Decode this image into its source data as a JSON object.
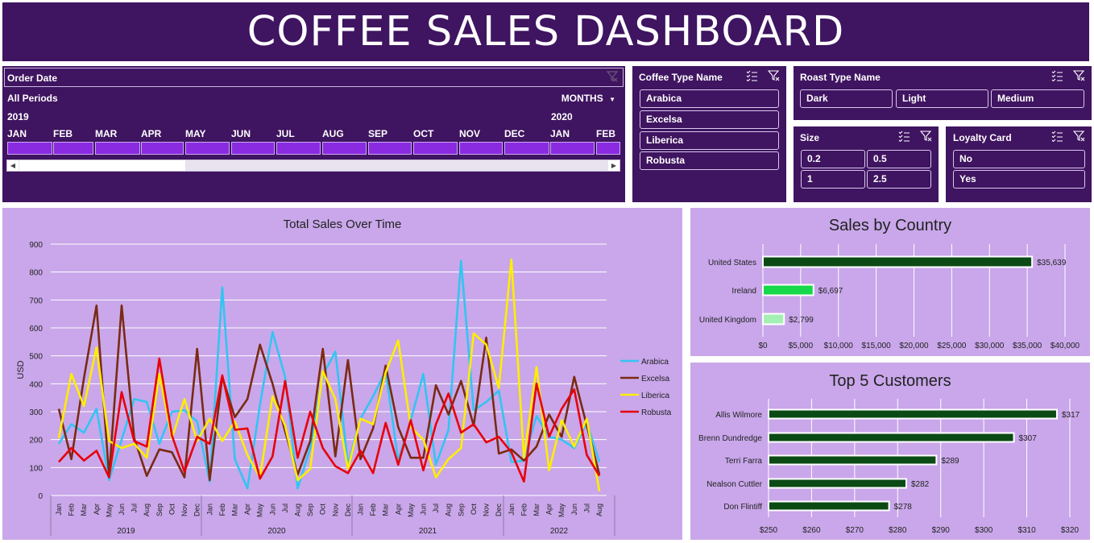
{
  "title": "COFFEE SALES DASHBOARD",
  "timeline": {
    "header": "Order Date",
    "periods": "All Periods",
    "level": "MONTHS",
    "year_start": "2019",
    "year_next": "2020",
    "months": [
      "JAN",
      "FEB",
      "MAR",
      "APR",
      "MAY",
      "JUN",
      "JUL",
      "AUG",
      "SEP",
      "OCT",
      "NOV",
      "DEC",
      "JAN",
      "FEB"
    ]
  },
  "coffee_type": {
    "title": "Coffee Type Name",
    "items": [
      "Arabica",
      "Excelsa",
      "Liberica",
      "Robusta"
    ]
  },
  "roast_type": {
    "title": "Roast Type Name",
    "items": [
      "Dark",
      "Light",
      "Medium"
    ]
  },
  "size": {
    "title": "Size",
    "items": [
      "0.2",
      "0.5",
      "1",
      "2.5"
    ]
  },
  "loyalty": {
    "title": "Loyalty Card",
    "items": [
      "No",
      "Yes"
    ]
  },
  "colors": {
    "arabica": "#33c4f2",
    "excelsa": "#7b2a12",
    "liberica": "#ffee00",
    "robusta": "#e8000a",
    "dark_bar": "#0b4a14"
  },
  "chart_data": [
    {
      "type": "line",
      "title": "Total Sales Over Time",
      "ylabel": "USD",
      "ylim": [
        0,
        900
      ],
      "yticks": [
        0,
        100,
        200,
        300,
        400,
        500,
        600,
        700,
        800,
        900
      ],
      "month_labels": [
        "Jan",
        "Feb",
        "Mar",
        "Apr",
        "May",
        "Jun",
        "Jul",
        "Aug",
        "Sep",
        "Oct",
        "Nov",
        "Dec"
      ],
      "years": [
        "2019",
        "2020",
        "2021",
        "2022"
      ],
      "legend_position": "right",
      "series": [
        {
          "name": "Arabica",
          "color": "#33c4f2",
          "values": [
            185,
            255,
            225,
            310,
            55,
            200,
            345,
            335,
            185,
            300,
            305,
            265,
            50,
            745,
            130,
            25,
            325,
            585,
            425,
            25,
            170,
            430,
            515,
            110,
            275,
            355,
            445,
            125,
            270,
            435,
            110,
            235,
            840,
            305,
            335,
            375,
            120,
            125,
            285,
            210,
            200,
            170,
            260,
            120
          ]
        },
        {
          "name": "Excelsa",
          "color": "#7b2a12",
          "values": [
            310,
            130,
            420,
            680,
            70,
            680,
            205,
            70,
            165,
            155,
            65,
            525,
            55,
            425,
            280,
            345,
            540,
            400,
            230,
            75,
            195,
            525,
            140,
            485,
            130,
            240,
            465,
            245,
            135,
            135,
            395,
            290,
            410,
            250,
            565,
            150,
            165,
            125,
            175,
            290,
            210,
            425,
            250,
            75
          ]
        },
        {
          "name": "Liberica",
          "color": "#ffee00",
          "values": [
            205,
            435,
            320,
            530,
            195,
            170,
            185,
            135,
            435,
            205,
            345,
            195,
            275,
            195,
            265,
            145,
            65,
            355,
            250,
            55,
            95,
            445,
            345,
            95,
            275,
            255,
            440,
            555,
            245,
            200,
            65,
            130,
            170,
            580,
            540,
            385,
            845,
            135,
            460,
            90,
            270,
            175,
            275,
            15
          ]
        },
        {
          "name": "Robusta",
          "color": "#e8000a",
          "values": [
            120,
            170,
            125,
            160,
            65,
            370,
            195,
            175,
            490,
            215,
            85,
            210,
            185,
            430,
            235,
            240,
            60,
            140,
            410,
            135,
            300,
            170,
            105,
            80,
            160,
            80,
            260,
            110,
            270,
            90,
            255,
            365,
            225,
            255,
            190,
            210,
            155,
            50,
            400,
            210,
            310,
            380,
            145,
            70
          ]
        }
      ]
    },
    {
      "type": "bar",
      "orientation": "horizontal",
      "title": "Sales by Country",
      "categories": [
        "United States",
        "Ireland",
        "United Kingdom"
      ],
      "values": [
        35639,
        6697,
        2799
      ],
      "value_labels": [
        "$35,639",
        "$6,697",
        "$2,799"
      ],
      "bar_colors": [
        "#0b4a14",
        "#15d94a",
        "#a4f0b4"
      ],
      "xlim": [
        0,
        40000
      ],
      "xticks": [
        "$0",
        "$5,000",
        "$10,000",
        "$15,000",
        "$20,000",
        "$25,000",
        "$30,000",
        "$35,000",
        "$40,000"
      ]
    },
    {
      "type": "bar",
      "orientation": "horizontal",
      "title": "Top 5 Customers",
      "categories": [
        "Allis Wilmore",
        "Brenn Dundredge",
        "Terri Farra",
        "Nealson Cuttler",
        "Don Flintiff"
      ],
      "values": [
        317,
        307,
        289,
        282,
        278
      ],
      "value_labels": [
        "$317",
        "$307",
        "$289",
        "$282",
        "$278"
      ],
      "xlim": [
        250,
        320
      ],
      "xticks": [
        "$250",
        "$260",
        "$270",
        "$280",
        "$290",
        "$300",
        "$310",
        "$320"
      ]
    }
  ]
}
